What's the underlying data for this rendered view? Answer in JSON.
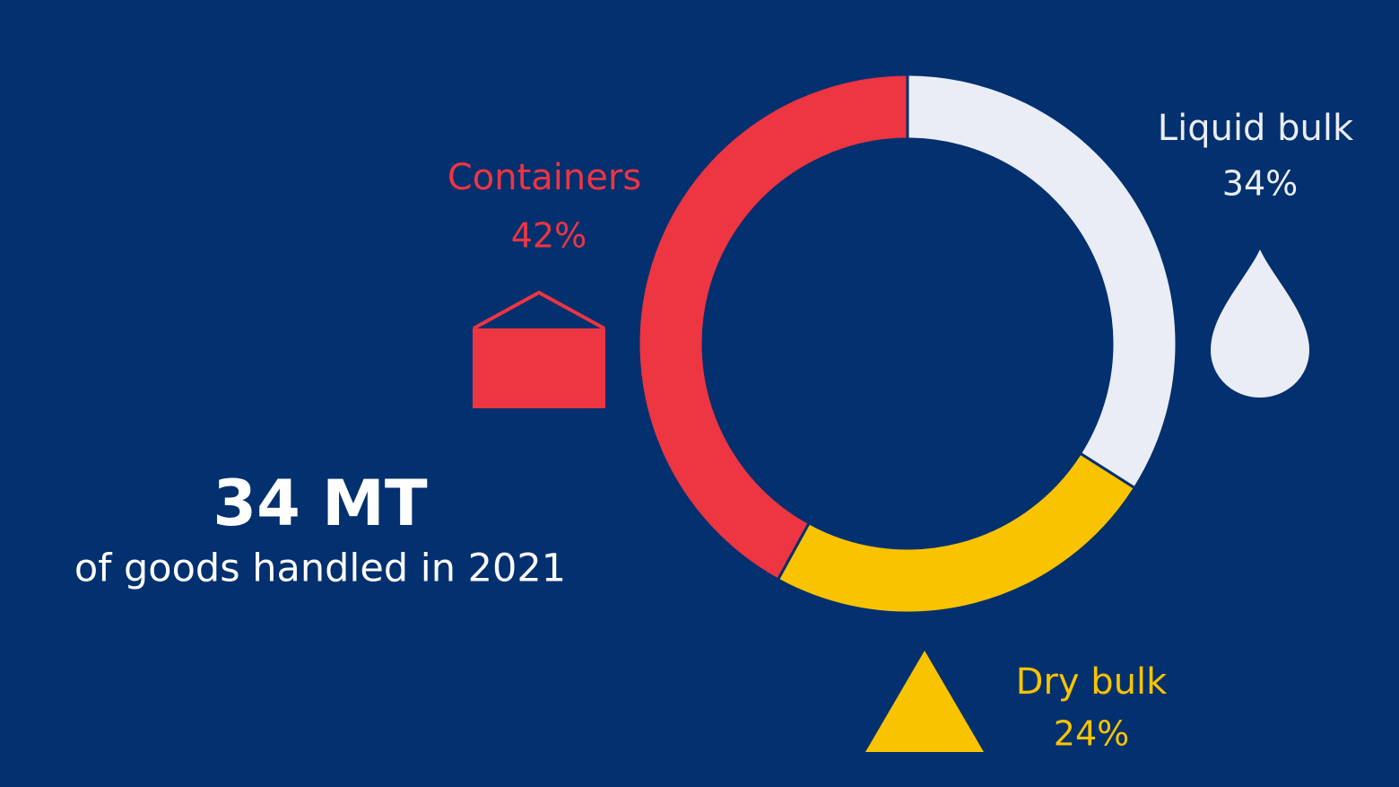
{
  "chart_data": {
    "type": "donut",
    "categories": [
      "Liquid bulk",
      "Dry bulk",
      "Containers"
    ],
    "values": [
      34,
      24,
      42
    ],
    "value_labels": [
      "34%",
      "24%",
      "42%"
    ],
    "colors": [
      "#eaedf6",
      "#f9c300",
      "#ee3542"
    ],
    "annotations": [
      "34 MT",
      "of goods handled in 2021"
    ]
  }
}
